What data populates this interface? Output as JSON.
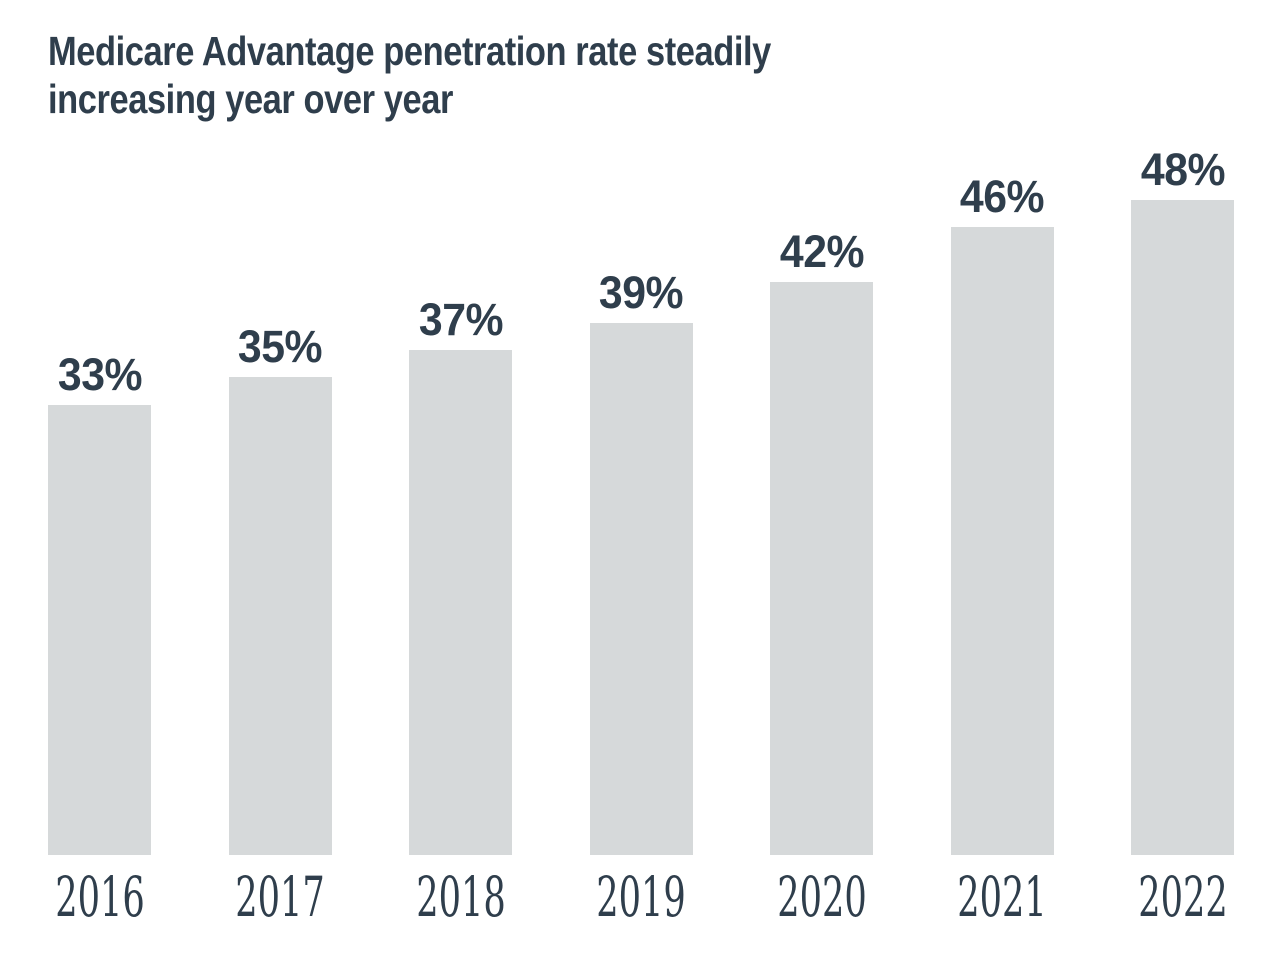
{
  "title_lines": [
    "Medicare Advantage penetration rate steadily",
    "increasing year over year"
  ],
  "colors": {
    "background": "#ffffff",
    "bar": "#d6d9da",
    "text": "#2f3e4c"
  },
  "chart_data": {
    "type": "bar",
    "title": "Medicare Advantage penetration rate steadily increasing year over year",
    "categories": [
      "2016",
      "2017",
      "2018",
      "2019",
      "2020",
      "2021",
      "2022"
    ],
    "values": [
      33,
      35,
      37,
      39,
      42,
      46,
      48
    ],
    "value_labels": [
      "33%",
      "35%",
      "37%",
      "39%",
      "42%",
      "46%",
      "48%"
    ],
    "xlabel": "",
    "ylabel": "",
    "unit": "%",
    "ylim": [
      0,
      55
    ],
    "grid": false,
    "legend": false,
    "axes_visible": false,
    "bar_color": "#d6d9da",
    "label_color": "#2f3e4c"
  }
}
